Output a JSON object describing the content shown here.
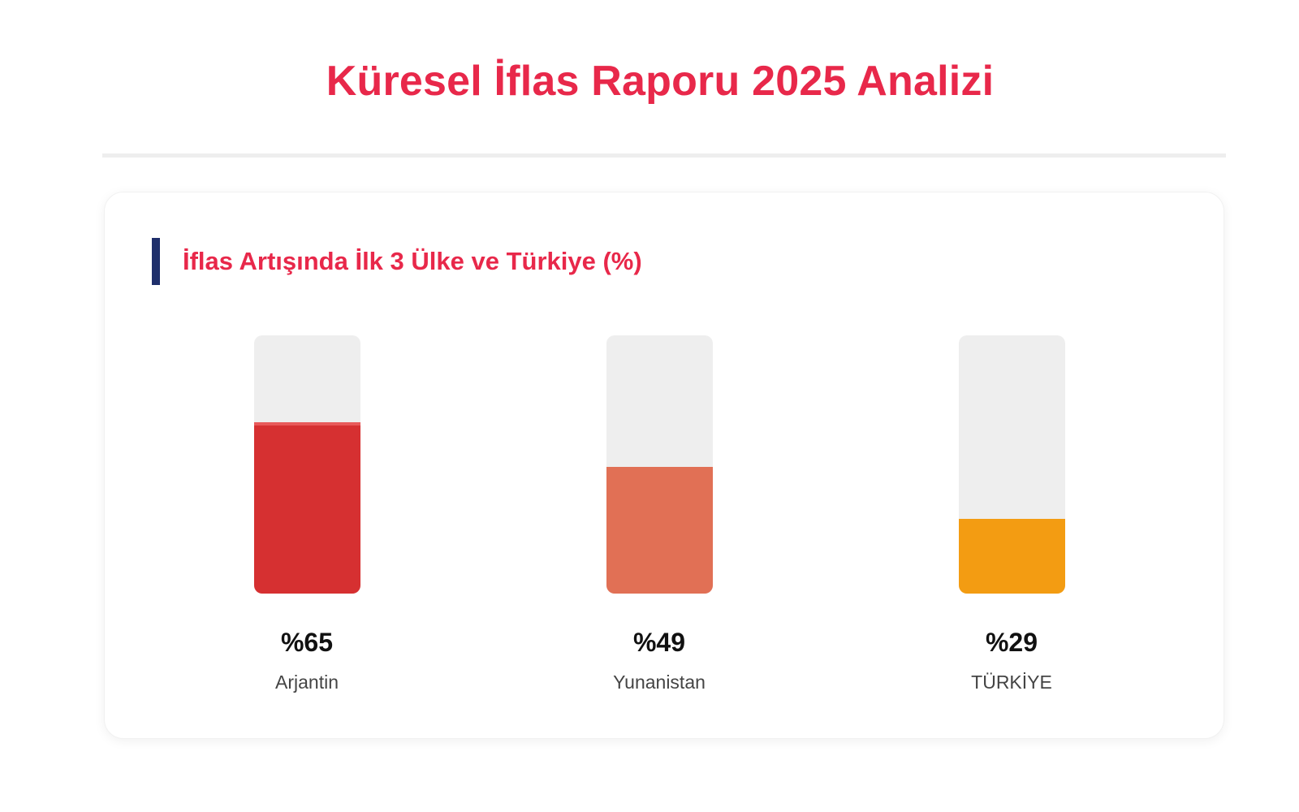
{
  "page": {
    "title": "Küresel İflas Raporu 2025 Analizi"
  },
  "card": {
    "heading": "İflas Artışında İlk 3 Ülke ve Türkiye (%)"
  },
  "colors": {
    "title": "#e8284a",
    "heading_accent": "#1f2f6b",
    "track": "#eeeeee"
  },
  "chart_data": {
    "type": "bar",
    "title": "İflas Artışında İlk 3 Ülke ve Türkiye (%)",
    "categories": [
      "Arjantin",
      "Yunanistan",
      "TÜRKİYE"
    ],
    "values": [
      65,
      49,
      29
    ],
    "value_labels": [
      "%65",
      "%49",
      "%29"
    ],
    "colors": [
      "#d63031",
      "#e17055",
      "#f39c12"
    ],
    "ylim": [
      0,
      100
    ],
    "grid": false,
    "legend": "none"
  }
}
